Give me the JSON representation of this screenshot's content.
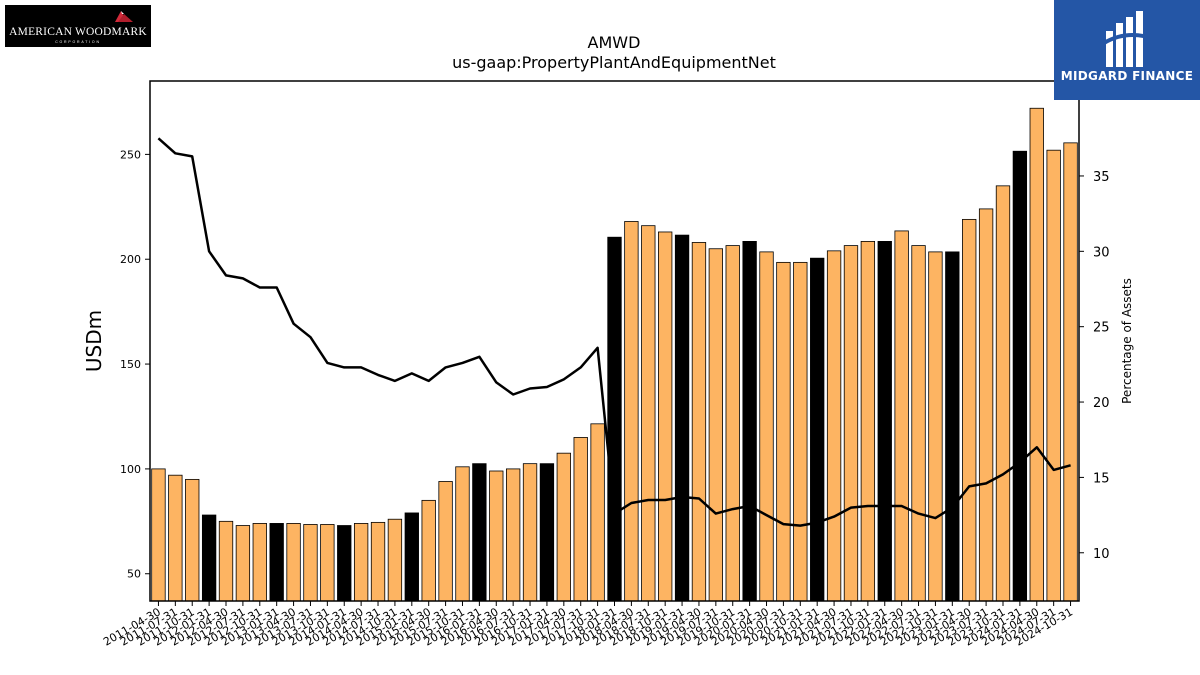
{
  "logos": {
    "left": {
      "text": "AMERICAN WOODMARK",
      "subtext": "CORPORATION"
    },
    "right": {
      "text": "MIDGARD FINANCE"
    }
  },
  "chart_data": {
    "type": "bar",
    "title": "AMWD",
    "subtitle": "us-gaap:PropertyPlantAndEquipmentNet",
    "ylabel": "USDm",
    "y2label": "Percentage of Assets",
    "ylim": [
      37,
      285
    ],
    "y2lim": [
      6.8,
      41.3
    ],
    "yticks": [
      50,
      100,
      150,
      200,
      250
    ],
    "y2ticks": [
      10,
      15,
      20,
      25,
      30,
      35
    ],
    "colors": {
      "bar": "#fdb462",
      "bar_highlight": "#000000",
      "line": "#000000"
    },
    "categories": [
      "2011-04-30",
      "2011-07-31",
      "2011-10-31",
      "2012-01-31",
      "2012-04-30",
      "2012-07-31",
      "2012-10-31",
      "2013-01-31",
      "2013-04-30",
      "2013-07-31",
      "2013-10-31",
      "2014-01-31",
      "2014-04-30",
      "2014-07-31",
      "2014-10-31",
      "2015-01-31",
      "2015-04-30",
      "2015-07-31",
      "2015-10-31",
      "2016-01-31",
      "2016-04-30",
      "2016-07-31",
      "2016-10-31",
      "2017-01-31",
      "2017-04-30",
      "2017-07-31",
      "2017-10-31",
      "2018-01-31",
      "2018-04-30",
      "2018-07-31",
      "2018-10-31",
      "2019-01-31",
      "2019-04-30",
      "2019-07-31",
      "2019-10-31",
      "2020-01-31",
      "2020-04-30",
      "2020-07-31",
      "2020-10-31",
      "2021-01-31",
      "2021-04-30",
      "2021-07-31",
      "2021-10-31",
      "2022-01-31",
      "2022-04-30",
      "2022-07-31",
      "2022-10-31",
      "2023-01-31",
      "2023-04-30",
      "2023-07-31",
      "2023-10-31",
      "2024-01-31",
      "2024-04-30",
      "2024-07-31",
      "2024-10-31"
    ],
    "series": [
      {
        "name": "USDm",
        "type": "bar",
        "values": [
          100,
          97,
          95,
          78,
          75,
          73,
          74,
          74,
          74,
          73.5,
          73.5,
          73,
          74,
          74.5,
          76,
          79,
          85,
          94,
          101,
          102.5,
          99,
          100,
          102.5,
          102.5,
          107.5,
          115,
          121.5,
          210.5,
          218,
          216,
          213,
          211.5,
          208,
          205,
          206.5,
          208.5,
          203.5,
          198.5,
          198.5,
          200.5,
          204,
          206.5,
          208.5,
          208.5,
          213.5,
          206.5,
          203.5,
          203.5,
          219,
          224,
          235,
          251.5,
          272,
          252,
          255.5
        ],
        "highlight": [
          false,
          false,
          false,
          true,
          false,
          false,
          false,
          true,
          false,
          false,
          false,
          true,
          false,
          false,
          false,
          true,
          false,
          false,
          false,
          true,
          false,
          false,
          false,
          true,
          false,
          false,
          false,
          true,
          false,
          false,
          false,
          true,
          false,
          false,
          false,
          true,
          false,
          false,
          false,
          true,
          false,
          false,
          false,
          true,
          false,
          false,
          false,
          true,
          false,
          false,
          false,
          true,
          false,
          false,
          false
        ]
      },
      {
        "name": "Percentage of Assets",
        "type": "line",
        "axis": "right",
        "values": [
          37.5,
          36.5,
          36.3,
          30,
          28.4,
          28.2,
          27.6,
          27.6,
          25.2,
          24.3,
          22.6,
          22.3,
          22.3,
          21.8,
          21.4,
          21.9,
          21.4,
          22.3,
          22.6,
          23,
          21.3,
          20.5,
          20.9,
          21,
          21.5,
          22.3,
          23.6,
          12.6,
          13.3,
          13.5,
          13.5,
          13.7,
          13.6,
          12.6,
          12.9,
          13.1,
          12.5,
          11.9,
          11.8,
          12,
          12.4,
          13,
          13.1,
          13.1,
          13.1,
          12.6,
          12.3,
          13,
          14.4,
          14.6,
          15.2,
          16,
          17,
          15.5,
          15.8
        ]
      }
    ]
  }
}
